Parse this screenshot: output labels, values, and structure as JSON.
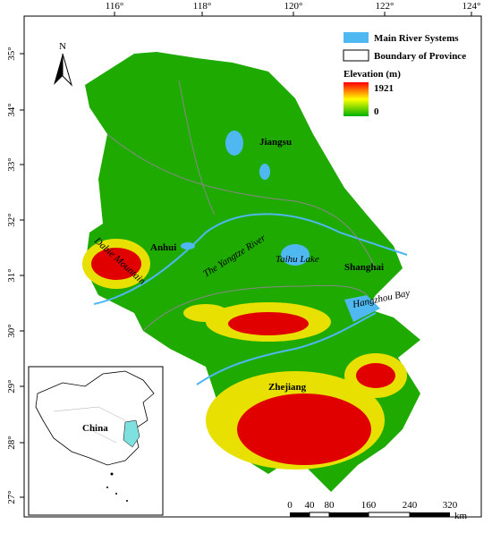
{
  "map": {
    "lon_labels": [
      "116°",
      "118°",
      "120°",
      "122°",
      "124°"
    ],
    "lat_labels": [
      "35°",
      "34°",
      "33°",
      "32°",
      "31°",
      "30°",
      "29°",
      "28°",
      "27°"
    ],
    "north": "N",
    "legend": {
      "items": [
        "Main River Systems",
        "Boundary of Province"
      ],
      "elevation_title": "Elevation (m)",
      "max": "1921",
      "min": "0"
    },
    "places": [
      "Jiangsu",
      "Anhui",
      "Shanghai",
      "Zhejiang"
    ],
    "water": [
      "Taihu Lake",
      "Hangzhou Bay",
      "The Yangtze River",
      "Dabie Mountain"
    ],
    "inset": {
      "label": "China"
    },
    "scale": {
      "labels": [
        "0",
        "40",
        "80",
        "160",
        "240",
        "320"
      ],
      "unit": "km"
    }
  }
}
